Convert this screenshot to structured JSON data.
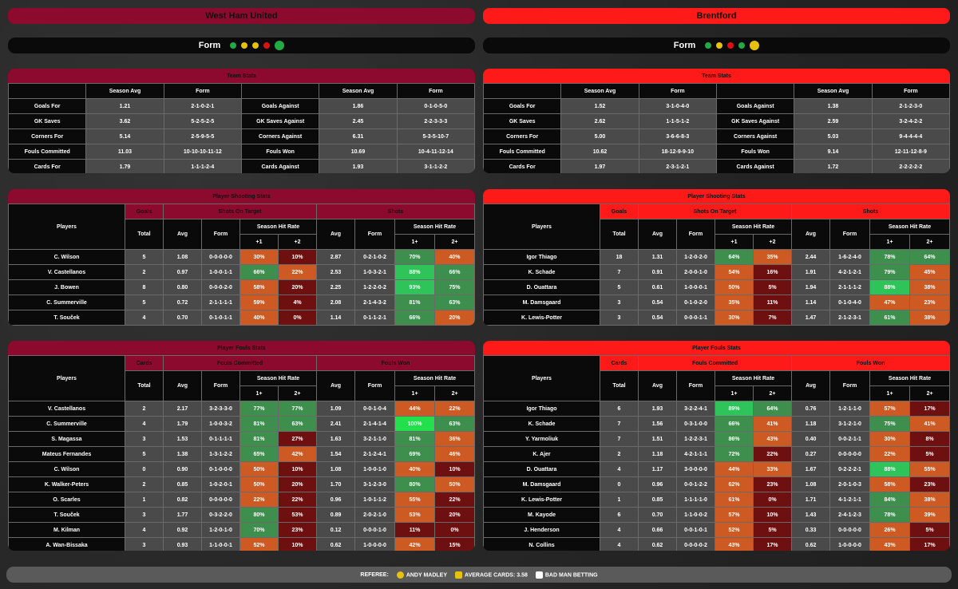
{
  "footer": {
    "referee_label": "REFEREE:",
    "referee": "ANDY MADLEY",
    "cards_label": "AVERAGE CARDS:",
    "cards": "3.58",
    "brand": "BAD MAN BETTING"
  },
  "teams": [
    {
      "name": "West Ham United",
      "color": "#8b0a2e",
      "form_label": "Form",
      "form": [
        "#22aa44",
        "#e8c10c",
        "#e8c10c",
        "#dd1111",
        "#22aa44"
      ],
      "team_stats": {
        "title": "Team Stats",
        "h": [
          "Season Avg",
          "Form",
          "Season Avg",
          "Form"
        ],
        "rows": [
          [
            "Goals For",
            "1.21",
            "2-1-0-2-1",
            "Goals Against",
            "1.86",
            "0-1-0-5-0"
          ],
          [
            "GK Saves",
            "3.62",
            "5-2-5-2-5",
            "GK Saves Against",
            "2.45",
            "2-2-3-3-3"
          ],
          [
            "Corners For",
            "5.14",
            "2-5-9-5-5",
            "Corners Against",
            "6.31",
            "5-3-5-10-7"
          ],
          [
            "Fouls Committed",
            "11.03",
            "10-10-10-11-12",
            "Fouls Won",
            "10.69",
            "10-4-11-12-14"
          ],
          [
            "Cards For",
            "1.79",
            "1-1-1-2-4",
            "Cards Against",
            "1.93",
            "3-1-1-2-2"
          ]
        ]
      },
      "shooting": {
        "title": "Player Shooting Stats",
        "g1": "Goals",
        "g2": "Shots On Target",
        "g3": "Shots",
        "players": "Players",
        "total": "Total",
        "avg": "Avg",
        "form": "Form",
        "shr": "Season Hit Rate",
        "c1": "+1",
        "c2": "+2",
        "d1": "1+",
        "d2": "2+",
        "rows": [
          [
            "C. Wilson",
            "5",
            "1.08",
            "0-0-0-0-0",
            [
              "30%",
              "#cc5a22"
            ],
            [
              "10%",
              "#6e1010"
            ],
            "2.87",
            "0-2-1-0-2",
            [
              "70%",
              "#3e8e4e"
            ],
            [
              "40%",
              "#cc5a22"
            ]
          ],
          [
            "V. Castellanos",
            "2",
            "0.97",
            "1-0-0-1-1",
            [
              "66%",
              "#3e8e4e"
            ],
            [
              "22%",
              "#cc5a22"
            ],
            "2.53",
            "1-0-3-2-1",
            [
              "88%",
              "#2ec45a"
            ],
            [
              "66%",
              "#3e8e4e"
            ]
          ],
          [
            "J. Bowen",
            "8",
            "0.80",
            "0-0-0-2-0",
            [
              "58%",
              "#cc5a22"
            ],
            [
              "20%",
              "#6e1010"
            ],
            "2.25",
            "1-2-2-0-2",
            [
              "93%",
              "#2ec45a"
            ],
            [
              "75%",
              "#3e8e4e"
            ]
          ],
          [
            "C. Summerville",
            "5",
            "0.72",
            "2-1-1-1-1",
            [
              "59%",
              "#cc5a22"
            ],
            [
              "4%",
              "#6e1010"
            ],
            "2.08",
            "2-1-4-3-2",
            [
              "81%",
              "#3e8e4e"
            ],
            [
              "63%",
              "#3e8e4e"
            ]
          ],
          [
            "T. Souček",
            "4",
            "0.70",
            "0-1-0-1-1",
            [
              "40%",
              "#cc5a22"
            ],
            [
              "0%",
              "#6e1010"
            ],
            "1.14",
            "0-1-1-2-1",
            [
              "66%",
              "#3e8e4e"
            ],
            [
              "20%",
              "#cc5a22"
            ]
          ]
        ]
      },
      "fouls": {
        "title": "Player Fouls Stats",
        "g1": "Cards",
        "g2": "Fouls Committed",
        "g3": "Fouls Won",
        "players": "Players",
        "total": "Total",
        "avg": "Avg",
        "form": "Form",
        "shr": "Season Hit Rate",
        "c1": "1+",
        "c2": "2+",
        "d1": "1+",
        "d2": "2+",
        "rows": [
          [
            "V. Castellanos",
            "2",
            "2.17",
            "3-2-3-3-0",
            [
              "77%",
              "#3e8e4e"
            ],
            [
              "77%",
              "#3e8e4e"
            ],
            "1.09",
            "0-0-1-0-4",
            [
              "44%",
              "#cc5a22"
            ],
            [
              "22%",
              "#cc5a22"
            ]
          ],
          [
            "C. Summerville",
            "4",
            "1.79",
            "1-0-0-3-2",
            [
              "81%",
              "#3e8e4e"
            ],
            [
              "63%",
              "#3e8e4e"
            ],
            "2.41",
            "2-1-4-1-4",
            [
              "100%",
              "#22e04c"
            ],
            [
              "63%",
              "#3e8e4e"
            ]
          ],
          [
            "S. Magassa",
            "3",
            "1.53",
            "0-1-1-1-1",
            [
              "81%",
              "#3e8e4e"
            ],
            [
              "27%",
              "#6e1010"
            ],
            "1.63",
            "3-2-1-1-0",
            [
              "81%",
              "#3e8e4e"
            ],
            [
              "36%",
              "#cc5a22"
            ]
          ],
          [
            "Mateus Fernandes",
            "5",
            "1.38",
            "1-3-1-2-2",
            [
              "65%",
              "#3e8e4e"
            ],
            [
              "42%",
              "#cc5a22"
            ],
            "1.54",
            "2-1-2-4-1",
            [
              "69%",
              "#3e8e4e"
            ],
            [
              "46%",
              "#cc5a22"
            ]
          ],
          [
            "C. Wilson",
            "0",
            "0.90",
            "0-1-0-0-0",
            [
              "50%",
              "#cc5a22"
            ],
            [
              "10%",
              "#6e1010"
            ],
            "1.08",
            "1-0-0-1-0",
            [
              "40%",
              "#cc5a22"
            ],
            [
              "10%",
              "#6e1010"
            ]
          ],
          [
            "K. Walker-Peters",
            "2",
            "0.85",
            "1-0-2-0-1",
            [
              "50%",
              "#cc5a22"
            ],
            [
              "20%",
              "#6e1010"
            ],
            "1.70",
            "3-1-2-3-0",
            [
              "80%",
              "#3e8e4e"
            ],
            [
              "50%",
              "#cc5a22"
            ]
          ],
          [
            "O. Scarles",
            "1",
            "0.82",
            "0-0-0-0-0",
            [
              "22%",
              "#cc5a22"
            ],
            [
              "22%",
              "#6e1010"
            ],
            "0.96",
            "1-0-1-1-2",
            [
              "55%",
              "#cc5a22"
            ],
            [
              "22%",
              "#6e1010"
            ]
          ],
          [
            "T. Souček",
            "3",
            "1.77",
            "0-3-2-2-0",
            [
              "80%",
              "#3e8e4e"
            ],
            [
              "53%",
              "#6e1010"
            ],
            "0.89",
            "2-0-2-1-0",
            [
              "53%",
              "#cc5a22"
            ],
            [
              "20%",
              "#6e1010"
            ]
          ],
          [
            "M. Kilman",
            "4",
            "0.92",
            "1-2-0-1-0",
            [
              "70%",
              "#3e8e4e"
            ],
            [
              "23%",
              "#6e1010"
            ],
            "0.12",
            "0-0-0-1-0",
            [
              "11%",
              "#6e1010"
            ],
            [
              "0%",
              "#6e1010"
            ]
          ],
          [
            "A. Wan-Bissaka",
            "3",
            "0.93",
            "1-1-0-0-1",
            [
              "52%",
              "#cc5a22"
            ],
            [
              "10%",
              "#6e1010"
            ],
            "0.62",
            "1-0-0-0-0",
            [
              "42%",
              "#cc5a22"
            ],
            [
              "15%",
              "#6e1010"
            ]
          ]
        ]
      }
    },
    {
      "name": "Brentford",
      "color": "#ff1a1a",
      "form_label": "Form",
      "form": [
        "#22aa44",
        "#e8c10c",
        "#dd1111",
        "#22aa44",
        "#e8c10c"
      ],
      "team_stats": {
        "title": "Team Stats",
        "h": [
          "Season Avg",
          "Form",
          "Season Avg",
          "Form"
        ],
        "rows": [
          [
            "Goals For",
            "1.52",
            "3-1-0-4-0",
            "Goals Against",
            "1.38",
            "2-1-2-3-0"
          ],
          [
            "GK Saves",
            "2.62",
            "1-1-5-1-2",
            "GK Saves Against",
            "2.59",
            "3-2-4-2-2"
          ],
          [
            "Corners For",
            "5.00",
            "3-6-6-8-3",
            "Corners Against",
            "5.03",
            "9-4-4-4-4"
          ],
          [
            "Fouls Committed",
            "10.62",
            "18-12-9-9-10",
            "Fouls Won",
            "9.14",
            "12-11-12-8-9"
          ],
          [
            "Cards For",
            "1.97",
            "2-3-1-2-1",
            "Cards Against",
            "1.72",
            "2-2-2-2-2"
          ]
        ]
      },
      "shooting": {
        "title": "Player Shooting Stats",
        "g1": "Goals",
        "g2": "Shots On Target",
        "g3": "Shots",
        "players": "Players",
        "total": "Total",
        "avg": "Avg",
        "form": "Form",
        "shr": "Season Hit Rate",
        "c1": "+1",
        "c2": "+2",
        "d1": "1+",
        "d2": "2+",
        "rows": [
          [
            "Igor Thiago",
            "18",
            "1.31",
            "1-2-0-2-0",
            [
              "64%",
              "#3e8e4e"
            ],
            [
              "35%",
              "#cc5a22"
            ],
            "2.44",
            "1-6-2-4-0",
            [
              "78%",
              "#3e8e4e"
            ],
            [
              "64%",
              "#3e8e4e"
            ]
          ],
          [
            "K. Schade",
            "7",
            "0.91",
            "2-0-0-1-0",
            [
              "54%",
              "#cc5a22"
            ],
            [
              "16%",
              "#6e1010"
            ],
            "1.91",
            "4-2-1-2-1",
            [
              "79%",
              "#3e8e4e"
            ],
            [
              "45%",
              "#cc5a22"
            ]
          ],
          [
            "D. Ouattara",
            "5",
            "0.61",
            "1-0-0-0-1",
            [
              "50%",
              "#cc5a22"
            ],
            [
              "5%",
              "#6e1010"
            ],
            "1.94",
            "2-1-1-1-2",
            [
              "88%",
              "#2ec45a"
            ],
            [
              "38%",
              "#cc5a22"
            ]
          ],
          [
            "M. Damsgaard",
            "3",
            "0.54",
            "0-1-0-2-0",
            [
              "35%",
              "#cc5a22"
            ],
            [
              "11%",
              "#6e1010"
            ],
            "1.14",
            "0-1-0-4-0",
            [
              "47%",
              "#cc5a22"
            ],
            [
              "23%",
              "#cc5a22"
            ]
          ],
          [
            "K. Lewis-Potter",
            "3",
            "0.54",
            "0-0-0-1-1",
            [
              "30%",
              "#cc5a22"
            ],
            [
              "7%",
              "#6e1010"
            ],
            "1.47",
            "2-1-2-3-1",
            [
              "61%",
              "#3e8e4e"
            ],
            [
              "38%",
              "#cc5a22"
            ]
          ]
        ]
      },
      "fouls": {
        "title": "Player Fouls Stats",
        "g1": "Cards",
        "g2": "Fouls Committed",
        "g3": "Fouls Won",
        "players": "Players",
        "total": "Total",
        "avg": "Avg",
        "form": "Form",
        "shr": "Season Hit Rate",
        "c1": "1+",
        "c2": "2+",
        "d1": "1+",
        "d2": "2+",
        "rows": [
          [
            "Igor Thiago",
            "6",
            "1.93",
            "3-2-2-4-1",
            [
              "89%",
              "#2ec45a"
            ],
            [
              "64%",
              "#3e8e4e"
            ],
            "0.76",
            "1-2-1-1-0",
            [
              "57%",
              "#cc5a22"
            ],
            [
              "17%",
              "#6e1010"
            ]
          ],
          [
            "K. Schade",
            "7",
            "1.56",
            "0-3-1-0-0",
            [
              "66%",
              "#3e8e4e"
            ],
            [
              "41%",
              "#cc5a22"
            ],
            "1.18",
            "3-1-2-1-0",
            [
              "75%",
              "#3e8e4e"
            ],
            [
              "41%",
              "#cc5a22"
            ]
          ],
          [
            "Y. Yarmoliuk",
            "7",
            "1.51",
            "1-2-2-3-1",
            [
              "86%",
              "#3e8e4e"
            ],
            [
              "43%",
              "#cc5a22"
            ],
            "0.40",
            "0-0-2-1-1",
            [
              "30%",
              "#cc5a22"
            ],
            [
              "8%",
              "#6e1010"
            ]
          ],
          [
            "K. Ajer",
            "2",
            "1.18",
            "4-2-1-1-1",
            [
              "72%",
              "#3e8e4e"
            ],
            [
              "22%",
              "#6e1010"
            ],
            "0.27",
            "0-0-0-0-0",
            [
              "22%",
              "#cc5a22"
            ],
            [
              "5%",
              "#6e1010"
            ]
          ],
          [
            "D. Ouattara",
            "4",
            "1.17",
            "3-0-0-0-0",
            [
              "44%",
              "#cc5a22"
            ],
            [
              "33%",
              "#cc5a22"
            ],
            "1.67",
            "0-2-2-2-1",
            [
              "88%",
              "#2ec45a"
            ],
            [
              "55%",
              "#cc5a22"
            ]
          ],
          [
            "M. Damsgaard",
            "0",
            "0.96",
            "0-0-1-2-2",
            [
              "62%",
              "#cc5a22"
            ],
            [
              "23%",
              "#6e1010"
            ],
            "1.08",
            "2-0-1-0-3",
            [
              "58%",
              "#cc5a22"
            ],
            [
              "23%",
              "#6e1010"
            ]
          ],
          [
            "K. Lewis-Potter",
            "1",
            "0.85",
            "1-1-1-1-0",
            [
              "61%",
              "#cc5a22"
            ],
            [
              "0%",
              "#6e1010"
            ],
            "1.71",
            "4-1-2-1-1",
            [
              "84%",
              "#3e8e4e"
            ],
            [
              "38%",
              "#cc5a22"
            ]
          ],
          [
            "M. Kayode",
            "6",
            "0.70",
            "1-1-0-0-2",
            [
              "57%",
              "#cc5a22"
            ],
            [
              "10%",
              "#6e1010"
            ],
            "1.43",
            "2-4-1-2-3",
            [
              "78%",
              "#3e8e4e"
            ],
            [
              "39%",
              "#cc5a22"
            ]
          ],
          [
            "J. Henderson",
            "4",
            "0.66",
            "0-0-1-0-1",
            [
              "52%",
              "#cc5a22"
            ],
            [
              "5%",
              "#6e1010"
            ],
            "0.33",
            "0-0-0-0-0",
            [
              "26%",
              "#cc5a22"
            ],
            [
              "5%",
              "#6e1010"
            ]
          ],
          [
            "N. Collins",
            "4",
            "0.62",
            "0-0-0-0-2",
            [
              "43%",
              "#cc5a22"
            ],
            [
              "17%",
              "#6e1010"
            ],
            "0.62",
            "1-0-0-0-0",
            [
              "43%",
              "#cc5a22"
            ],
            [
              "17%",
              "#6e1010"
            ]
          ]
        ]
      }
    }
  ]
}
